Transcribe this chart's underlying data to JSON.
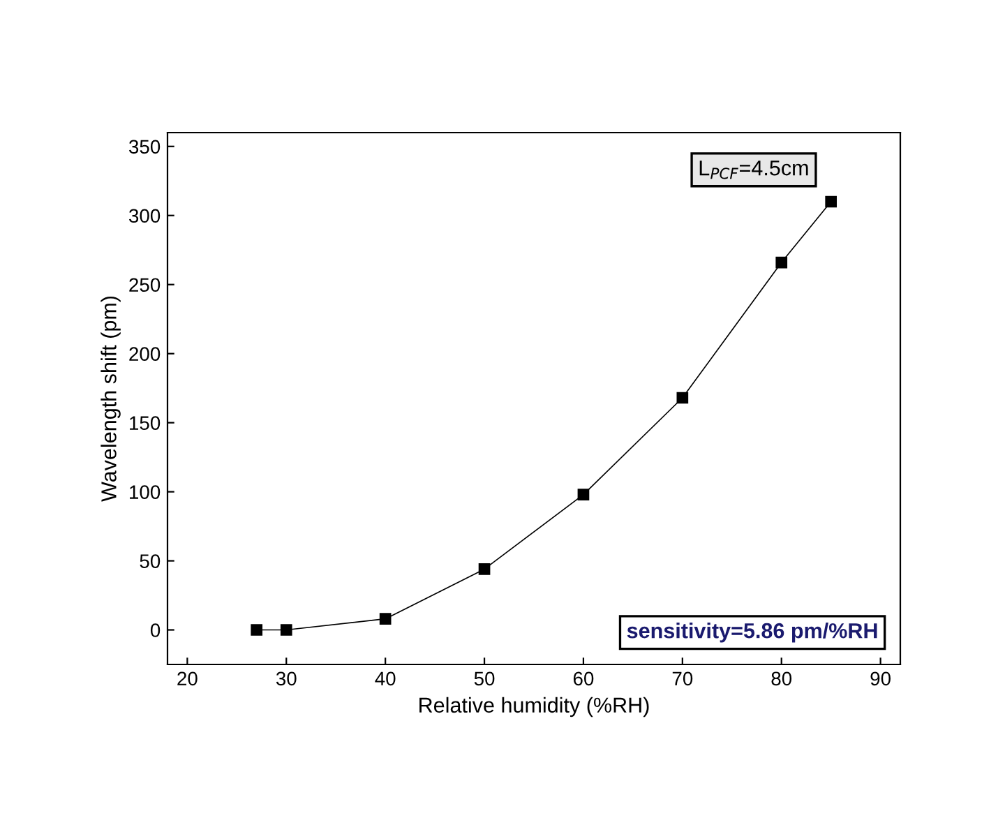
{
  "chart_data": {
    "type": "line",
    "xlabel": "Relative humidity (%RH)",
    "ylabel": "Wavelength shift (pm)",
    "x": [
      27,
      30,
      40,
      50,
      60,
      70,
      80,
      85
    ],
    "series": [
      {
        "color": "#000000",
        "values": [
          0,
          0,
          8,
          44,
          98,
          168,
          266,
          310
        ]
      }
    ],
    "xlim": [
      18,
      92
    ],
    "ylim": [
      -25,
      360
    ],
    "xticks": [
      20,
      30,
      40,
      50,
      60,
      70,
      80,
      90
    ],
    "yticks": [
      0,
      50,
      100,
      150,
      200,
      250,
      300,
      350
    ],
    "marker": "square",
    "line_style": "solid",
    "grid": false,
    "legend": false,
    "annotations": [
      "L$_{PCF}$=4.5cm",
      "sensitivity=5.86 pm/%RH"
    ]
  }
}
